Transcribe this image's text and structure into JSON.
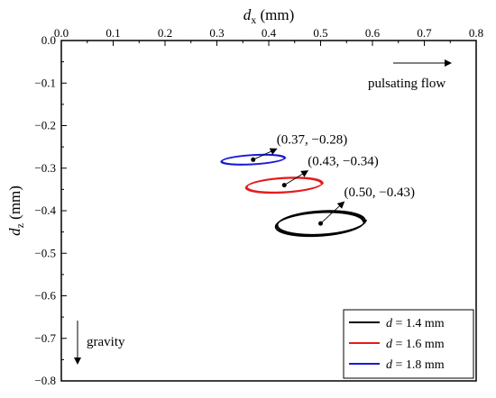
{
  "chart_data": {
    "type": "scatter",
    "title": "",
    "xlabel": {
      "main": "d",
      "sub": "x",
      "unit": " (mm)"
    },
    "ylabel": {
      "main": "d",
      "sub": "z",
      "unit": " (mm)"
    },
    "xlim": [
      0.0,
      0.8
    ],
    "ylim": [
      -0.8,
      0.0
    ],
    "x_ticks": [
      "0.0",
      "0.1",
      "0.2",
      "0.3",
      "0.4",
      "0.5",
      "0.6",
      "0.7",
      "0.8"
    ],
    "y_ticks": [
      "0.0",
      "−0.1",
      "−0.2",
      "−0.3",
      "−0.4",
      "−0.5",
      "−0.6",
      "−0.7",
      "−0.8"
    ],
    "x_axis_position": "top",
    "grid": false,
    "legend_position": "bottom-right",
    "series": [
      {
        "legend_label": "1.4 mm",
        "color": "#000000",
        "center": [
          0.5,
          -0.43
        ],
        "rx": 0.085,
        "rz": 0.028,
        "loops": 3,
        "drift": [
          0.006,
          0.006
        ],
        "annotation": "(0.50, −0.43)"
      },
      {
        "legend_label": "1.6 mm",
        "color": "#e8191c",
        "center": [
          0.43,
          -0.34
        ],
        "rx": 0.073,
        "rz": 0.017,
        "loops": 3,
        "drift": [
          0.004,
          0.003
        ],
        "annotation": "(0.43, −0.34)"
      },
      {
        "legend_label": "1.8 mm",
        "color": "#1a1ad6",
        "center": [
          0.37,
          -0.28
        ],
        "rx": 0.061,
        "rz": 0.011,
        "loops": 3,
        "drift": [
          0.003,
          0.002
        ],
        "annotation": "(0.37, −0.28)"
      }
    ],
    "legend_prefix": "d",
    "legend_equals": " = ",
    "annotations": {
      "flow": "pulsating flow",
      "gravity": "gravity"
    }
  }
}
